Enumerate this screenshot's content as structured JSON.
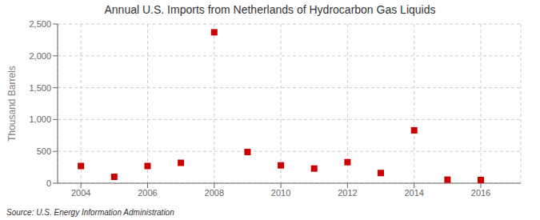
{
  "chart_data": {
    "type": "scatter",
    "title": "Annual U.S. Imports from Netherlands of Hydrocarbon Gas Liquids",
    "ylabel": "Thousand Barrels",
    "annotations": [
      "Source: U.S. Energy Information Administration"
    ],
    "x": [
      2004,
      2005,
      2006,
      2007,
      2008,
      2009,
      2010,
      2011,
      2012,
      2013,
      2014,
      2015,
      2016
    ],
    "values": [
      270,
      100,
      270,
      320,
      2370,
      490,
      280,
      230,
      330,
      160,
      830,
      55,
      50
    ],
    "color": "#cc0000",
    "marker": "square",
    "xlim": [
      2003.3,
      2017.2
    ],
    "xticks": [
      2004,
      2006,
      2008,
      2010,
      2012,
      2014,
      2016
    ],
    "ylim": [
      0,
      2500
    ],
    "yticks": [
      0,
      500,
      {
        "value": 1000,
        "label": "1,000"
      },
      {
        "value": 1500,
        "label": "1,500"
      },
      {
        "value": 2000,
        "label": "2,000"
      },
      {
        "value": 2500,
        "label": "2,500"
      }
    ],
    "grid": true
  }
}
